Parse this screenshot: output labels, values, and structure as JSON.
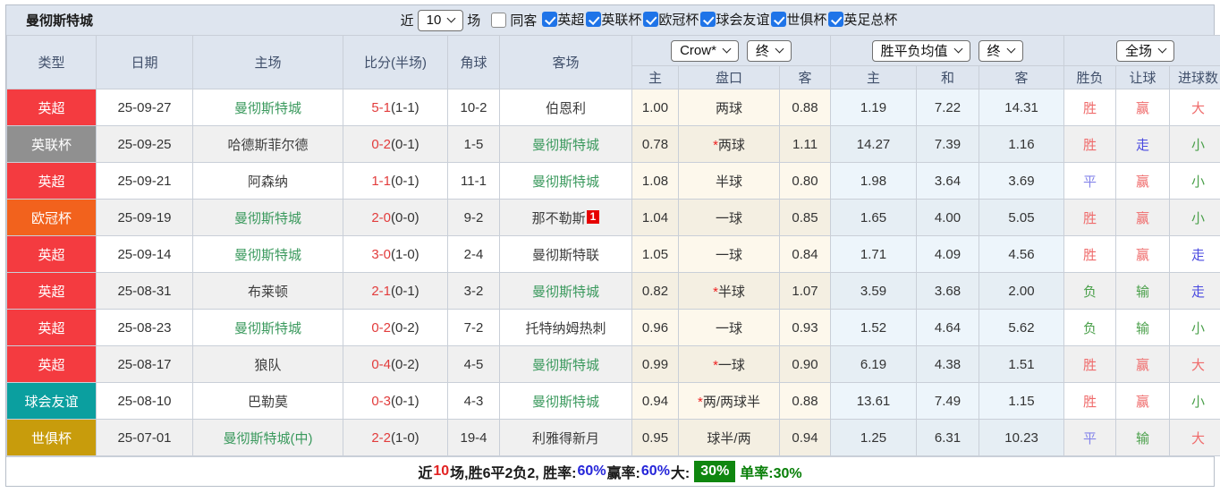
{
  "filter_bar": {
    "title": "曼彻斯特城",
    "recent_label": "近",
    "recent_value": "10",
    "matches_label": "场",
    "same_opponent_label": "同客",
    "same_opponent_checked": false,
    "leagues": [
      {
        "label": "英超",
        "checked": true
      },
      {
        "label": "英联杯",
        "checked": true
      },
      {
        "label": "欧冠杯",
        "checked": true
      },
      {
        "label": "球会友谊",
        "checked": true
      },
      {
        "label": "世俱杯",
        "checked": true
      },
      {
        "label": "英足总杯",
        "checked": true
      }
    ]
  },
  "table": {
    "columns": [
      "类型",
      "日期",
      "主场",
      "比分(半场)",
      "角球",
      "客场"
    ],
    "odds_group": {
      "select1": "Crow*",
      "select2": "终",
      "sub": [
        "主",
        "盘口",
        "客"
      ]
    },
    "avg_group": {
      "select1": "胜平负均值",
      "select2": "终",
      "sub": [
        "主",
        "和",
        "客"
      ]
    },
    "result_group": {
      "select1": "全场",
      "sub": [
        "胜负",
        "让球",
        "进球数"
      ]
    },
    "league_colors": {
      "英超": "#f43b40",
      "英联杯": "#909090",
      "欧冠杯": "#f2621d",
      "球会友谊": "#0b9f9f",
      "世俱杯": "#c89c0c"
    },
    "result_colors": {
      "r": "#ef6b6b",
      "b": "#4a4ae0",
      "lb": "#8585ea",
      "g": "#4ba04b"
    },
    "rows": [
      {
        "league": "英超",
        "league_color": "#f43b40",
        "date": "25-09-27",
        "home": "曼彻斯特城",
        "home_green": true,
        "score": "5-1",
        "half": "(1-1)",
        "corners": "10-2",
        "away": "伯恩利",
        "away_green": false,
        "away_badge": "",
        "odds_home": "1.00",
        "handicap": "两球",
        "odds_away": "0.88",
        "avg_home": "1.19",
        "avg_draw": "7.22",
        "avg_away": "14.31",
        "outcome": {
          "text": "胜",
          "c": "r"
        },
        "handicap_result": {
          "text": "赢",
          "c": "r"
        },
        "goals_result": {
          "text": "大",
          "c": "r"
        }
      },
      {
        "league": "英联杯",
        "league_color": "#909090",
        "date": "25-09-25",
        "home": "哈德斯菲尔德",
        "home_green": false,
        "score": "0-2",
        "half": "(0-1)",
        "corners": "1-5",
        "away": "曼彻斯特城",
        "away_green": true,
        "away_badge": "",
        "odds_home": "0.78",
        "handicap": "*两球",
        "odds_away": "1.11",
        "avg_home": "14.27",
        "avg_draw": "7.39",
        "avg_away": "1.16",
        "outcome": {
          "text": "胜",
          "c": "r"
        },
        "handicap_result": {
          "text": "走",
          "c": "b"
        },
        "goals_result": {
          "text": "小",
          "c": "g"
        }
      },
      {
        "league": "英超",
        "league_color": "#f43b40",
        "date": "25-09-21",
        "home": "阿森纳",
        "home_green": false,
        "score": "1-1",
        "half": "(0-1)",
        "corners": "11-1",
        "away": "曼彻斯特城",
        "away_green": true,
        "away_badge": "",
        "odds_home": "1.08",
        "handicap": "半球",
        "odds_away": "0.80",
        "avg_home": "1.98",
        "avg_draw": "3.64",
        "avg_away": "3.69",
        "outcome": {
          "text": "平",
          "c": "lb"
        },
        "handicap_result": {
          "text": "赢",
          "c": "r"
        },
        "goals_result": {
          "text": "小",
          "c": "g"
        }
      },
      {
        "league": "欧冠杯",
        "league_color": "#f2621d",
        "date": "25-09-19",
        "home": "曼彻斯特城",
        "home_green": true,
        "score": "2-0",
        "half": "(0-0)",
        "corners": "9-2",
        "away": "那不勒斯",
        "away_green": false,
        "away_badge": "1",
        "odds_home": "1.04",
        "handicap": "一球",
        "odds_away": "0.85",
        "avg_home": "1.65",
        "avg_draw": "4.00",
        "avg_away": "5.05",
        "outcome": {
          "text": "胜",
          "c": "r"
        },
        "handicap_result": {
          "text": "赢",
          "c": "r"
        },
        "goals_result": {
          "text": "小",
          "c": "g"
        }
      },
      {
        "league": "英超",
        "league_color": "#f43b40",
        "date": "25-09-14",
        "home": "曼彻斯特城",
        "home_green": true,
        "score": "3-0",
        "half": "(1-0)",
        "corners": "2-4",
        "away": "曼彻斯特联",
        "away_green": false,
        "away_badge": "",
        "odds_home": "1.05",
        "handicap": "一球",
        "odds_away": "0.84",
        "avg_home": "1.71",
        "avg_draw": "4.09",
        "avg_away": "4.56",
        "outcome": {
          "text": "胜",
          "c": "r"
        },
        "handicap_result": {
          "text": "赢",
          "c": "r"
        },
        "goals_result": {
          "text": "走",
          "c": "b"
        }
      },
      {
        "league": "英超",
        "league_color": "#f43b40",
        "date": "25-08-31",
        "home": "布莱顿",
        "home_green": false,
        "score": "2-1",
        "half": "(0-1)",
        "corners": "3-2",
        "away": "曼彻斯特城",
        "away_green": true,
        "away_badge": "",
        "odds_home": "0.82",
        "handicap": "*半球",
        "odds_away": "1.07",
        "avg_home": "3.59",
        "avg_draw": "3.68",
        "avg_away": "2.00",
        "outcome": {
          "text": "负",
          "c": "g"
        },
        "handicap_result": {
          "text": "输",
          "c": "g"
        },
        "goals_result": {
          "text": "走",
          "c": "b"
        }
      },
      {
        "league": "英超",
        "league_color": "#f43b40",
        "date": "25-08-23",
        "home": "曼彻斯特城",
        "home_green": true,
        "score": "0-2",
        "half": "(0-2)",
        "corners": "7-2",
        "away": "托特纳姆热刺",
        "away_green": false,
        "away_badge": "",
        "odds_home": "0.96",
        "handicap": "一球",
        "odds_away": "0.93",
        "avg_home": "1.52",
        "avg_draw": "4.64",
        "avg_away": "5.62",
        "outcome": {
          "text": "负",
          "c": "g"
        },
        "handicap_result": {
          "text": "输",
          "c": "g"
        },
        "goals_result": {
          "text": "小",
          "c": "g"
        }
      },
      {
        "league": "英超",
        "league_color": "#f43b40",
        "date": "25-08-17",
        "home": "狼队",
        "home_green": false,
        "score": "0-4",
        "half": "(0-2)",
        "corners": "4-5",
        "away": "曼彻斯特城",
        "away_green": true,
        "away_badge": "",
        "odds_home": "0.99",
        "handicap": "*一球",
        "odds_away": "0.90",
        "avg_home": "6.19",
        "avg_draw": "4.38",
        "avg_away": "1.51",
        "outcome": {
          "text": "胜",
          "c": "r"
        },
        "handicap_result": {
          "text": "赢",
          "c": "r"
        },
        "goals_result": {
          "text": "大",
          "c": "r"
        }
      },
      {
        "league": "球会友谊",
        "league_color": "#0b9f9f",
        "date": "25-08-10",
        "home": "巴勒莫",
        "home_green": false,
        "score": "0-3",
        "half": "(0-1)",
        "corners": "4-3",
        "away": "曼彻斯特城",
        "away_green": true,
        "away_badge": "",
        "odds_home": "0.94",
        "handicap": "*两/两球半",
        "odds_away": "0.88",
        "avg_home": "13.61",
        "avg_draw": "7.49",
        "avg_away": "1.15",
        "outcome": {
          "text": "胜",
          "c": "r"
        },
        "handicap_result": {
          "text": "赢",
          "c": "r"
        },
        "goals_result": {
          "text": "小",
          "c": "g"
        }
      },
      {
        "league": "世俱杯",
        "league_color": "#c89c0c",
        "date": "25-07-01",
        "home": "曼彻斯特城(中)",
        "home_green": true,
        "score": "2-2",
        "half": "(1-0)",
        "corners": "19-4",
        "away": "利雅得新月",
        "away_green": false,
        "away_badge": "",
        "odds_home": "0.95",
        "handicap": "球半/两",
        "odds_away": "0.94",
        "avg_home": "1.25",
        "avg_draw": "6.31",
        "avg_away": "10.23",
        "outcome": {
          "text": "平",
          "c": "lb"
        },
        "handicap_result": {
          "text": "输",
          "c": "g"
        },
        "goals_result": {
          "text": "大",
          "c": "r"
        }
      }
    ]
  },
  "summary": {
    "segments": [
      {
        "text": "近",
        "style": "dark"
      },
      {
        "text": "10",
        "style": "red"
      },
      {
        "text": "场,胜6平2负2, 胜率:",
        "style": "dark"
      },
      {
        "text": "60%",
        "style": "blue"
      },
      {
        "text": " 赢率:",
        "style": "dark"
      },
      {
        "text": "60%",
        "style": "blue"
      },
      {
        "text": " 大:",
        "style": "dark"
      },
      {
        "text": "30%",
        "style": "badge"
      },
      {
        "text": " 单率:30%",
        "style": "green"
      }
    ]
  }
}
